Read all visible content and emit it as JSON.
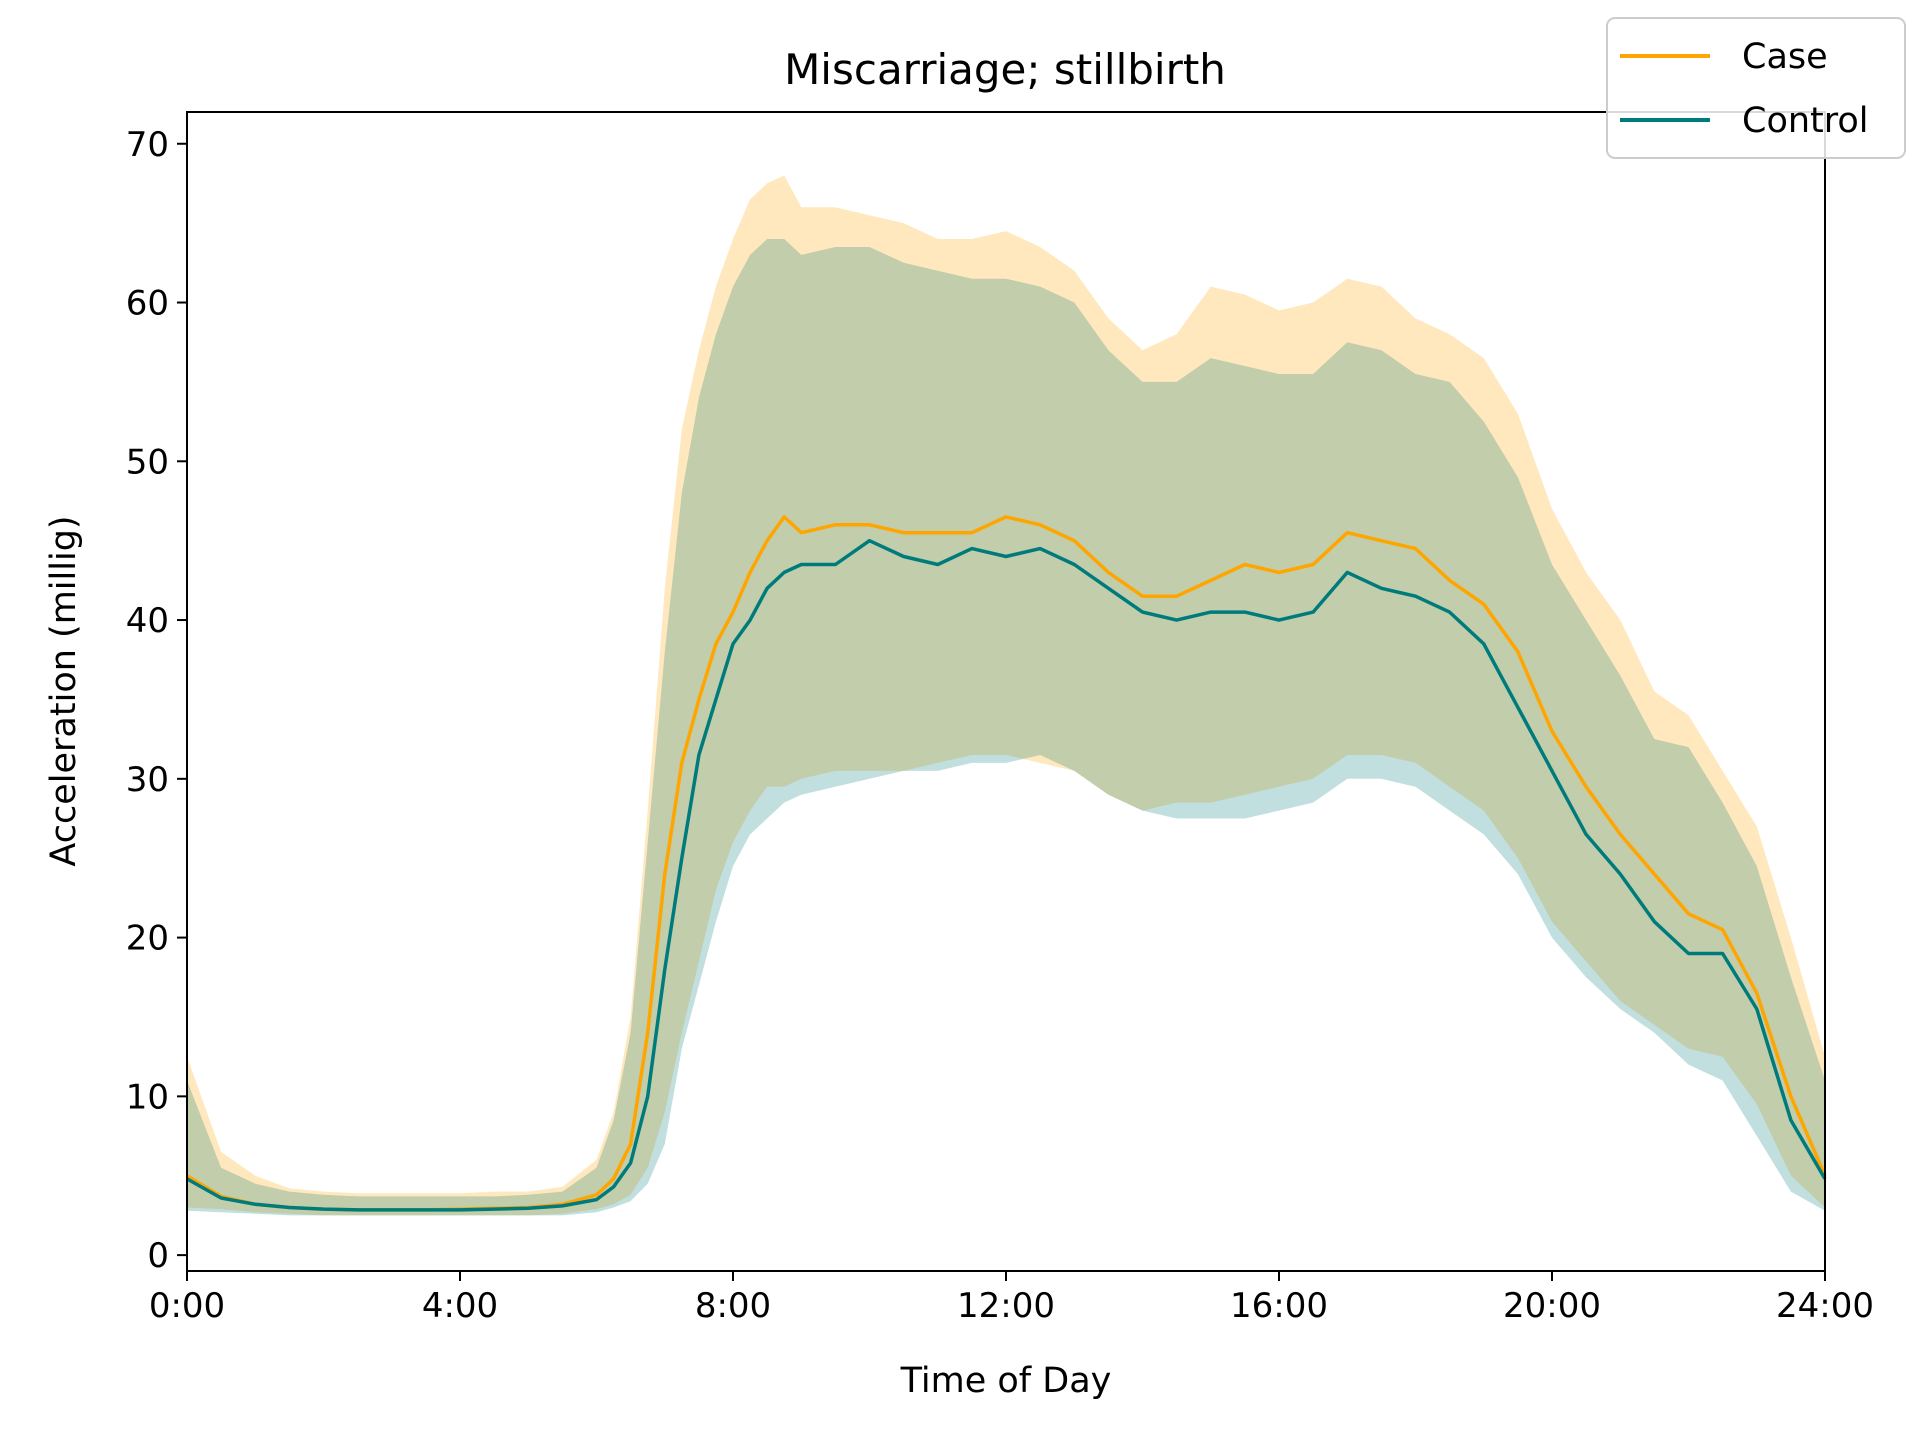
{
  "chart_data": {
    "type": "line",
    "title": "Miscarriage; stillbirth",
    "xlabel": "Time of Day",
    "ylabel": "Acceleration (millig)",
    "xlim": [
      0,
      24
    ],
    "ylim": [
      -1,
      72
    ],
    "x_ticks": [
      {
        "value": 0,
        "label": "0:00"
      },
      {
        "value": 4,
        "label": "4:00"
      },
      {
        "value": 8,
        "label": "8:00"
      },
      {
        "value": 12,
        "label": "12:00"
      },
      {
        "value": 16,
        "label": "16:00"
      },
      {
        "value": 20,
        "label": "20:00"
      },
      {
        "value": 24,
        "label": "24:00"
      }
    ],
    "y_ticks": [
      0,
      10,
      20,
      30,
      40,
      50,
      60,
      70
    ],
    "grid": false,
    "legend": {
      "placement": "top-right",
      "entries": [
        "Case",
        "Control"
      ]
    },
    "x": [
      0,
      0.5,
      1,
      1.5,
      2,
      2.5,
      3,
      3.5,
      4,
      4.5,
      5,
      5.5,
      6,
      6.25,
      6.5,
      6.75,
      7,
      7.25,
      7.5,
      7.75,
      8,
      8.25,
      8.5,
      8.75,
      9,
      9.5,
      10,
      10.5,
      11,
      11.5,
      12,
      12.5,
      13,
      13.5,
      14,
      14.5,
      15,
      15.5,
      16,
      16.5,
      17,
      17.5,
      18,
      18.5,
      19,
      19.5,
      20,
      20.5,
      21,
      21.5,
      22,
      22.5,
      23,
      23.5,
      24
    ],
    "series": [
      {
        "name": "Case",
        "color": "#FFA500",
        "values": [
          5.0,
          3.7,
          3.2,
          3.0,
          2.9,
          2.85,
          2.85,
          2.85,
          2.9,
          2.95,
          3.0,
          3.2,
          3.8,
          4.8,
          7.0,
          14.0,
          24.0,
          31.0,
          35.0,
          38.5,
          40.5,
          43.0,
          45.0,
          46.5,
          45.5,
          46.0,
          46.0,
          45.5,
          45.5,
          45.5,
          46.5,
          46.0,
          45.0,
          43.0,
          41.5,
          41.5,
          42.5,
          43.5,
          43.0,
          43.5,
          45.5,
          45.0,
          44.5,
          42.5,
          41.0,
          38.0,
          33.0,
          29.5,
          26.5,
          24.0,
          21.5,
          20.5,
          16.5,
          10.0,
          5.0
        ],
        "band_lower": [
          3.0,
          2.9,
          2.7,
          2.6,
          2.5,
          2.5,
          2.5,
          2.5,
          2.5,
          2.5,
          2.5,
          2.6,
          2.9,
          3.2,
          3.8,
          5.5,
          9.0,
          14.0,
          18.5,
          23.0,
          26.0,
          28.0,
          29.5,
          29.5,
          30.0,
          30.5,
          30.5,
          30.5,
          31.0,
          31.5,
          31.5,
          31.0,
          30.5,
          29.0,
          28.0,
          28.5,
          28.5,
          29.0,
          29.5,
          30.0,
          31.5,
          31.5,
          31.0,
          29.5,
          28.0,
          25.0,
          21.0,
          18.5,
          16.0,
          14.5,
          13.0,
          12.5,
          9.5,
          5.0,
          3.0
        ],
        "band_upper": [
          12.5,
          6.5,
          5.0,
          4.2,
          4.0,
          3.9,
          3.9,
          3.9,
          3.9,
          4.0,
          4.0,
          4.3,
          6.0,
          9.0,
          15.0,
          28.0,
          42.0,
          52.0,
          57.0,
          61.0,
          64.0,
          66.5,
          67.5,
          68.0,
          66.0,
          66.0,
          65.5,
          65.0,
          64.0,
          64.0,
          64.5,
          63.5,
          62.0,
          59.0,
          57.0,
          58.0,
          61.0,
          60.5,
          59.5,
          60.0,
          61.5,
          61.0,
          59.0,
          58.0,
          56.5,
          53.0,
          47.0,
          43.0,
          40.0,
          35.5,
          34.0,
          30.5,
          27.0,
          20.0,
          12.5
        ]
      },
      {
        "name": "Control",
        "color": "#007B7B",
        "values": [
          4.8,
          3.6,
          3.2,
          3.0,
          2.9,
          2.85,
          2.85,
          2.85,
          2.85,
          2.9,
          2.95,
          3.1,
          3.5,
          4.3,
          5.8,
          10.0,
          18.0,
          25.0,
          31.5,
          35.0,
          38.5,
          40.0,
          42.0,
          43.0,
          43.5,
          43.5,
          45.0,
          44.0,
          43.5,
          44.5,
          44.0,
          44.5,
          43.5,
          42.0,
          40.5,
          40.0,
          40.5,
          40.5,
          40.0,
          40.5,
          43.0,
          42.0,
          41.5,
          40.5,
          38.5,
          34.5,
          30.5,
          26.5,
          24.0,
          21.0,
          19.0,
          19.0,
          15.5,
          8.5,
          4.8
        ],
        "band_lower": [
          2.8,
          2.7,
          2.6,
          2.5,
          2.5,
          2.5,
          2.5,
          2.5,
          2.5,
          2.5,
          2.5,
          2.5,
          2.7,
          3.0,
          3.4,
          4.5,
          7.0,
          13.0,
          17.0,
          21.0,
          24.5,
          26.5,
          27.5,
          28.5,
          29.0,
          29.5,
          30.0,
          30.5,
          30.5,
          31.0,
          31.0,
          31.5,
          30.5,
          29.0,
          28.0,
          27.5,
          27.5,
          27.5,
          28.0,
          28.5,
          30.0,
          30.0,
          29.5,
          28.0,
          26.5,
          24.0,
          20.0,
          17.5,
          15.5,
          14.0,
          12.0,
          11.0,
          7.5,
          4.0,
          2.8
        ],
        "band_upper": [
          11.0,
          5.5,
          4.5,
          4.0,
          3.8,
          3.7,
          3.7,
          3.7,
          3.7,
          3.7,
          3.8,
          4.0,
          5.5,
          8.5,
          14.0,
          26.0,
          38.0,
          48.0,
          54.0,
          58.0,
          61.0,
          63.0,
          64.0,
          64.0,
          63.0,
          63.5,
          63.5,
          62.5,
          62.0,
          61.5,
          61.5,
          61.0,
          60.0,
          57.0,
          55.0,
          55.0,
          56.5,
          56.0,
          55.5,
          55.5,
          57.5,
          57.0,
          55.5,
          55.0,
          52.5,
          49.0,
          43.5,
          40.0,
          36.5,
          32.5,
          32.0,
          28.5,
          24.5,
          17.5,
          11.0
        ]
      }
    ]
  }
}
